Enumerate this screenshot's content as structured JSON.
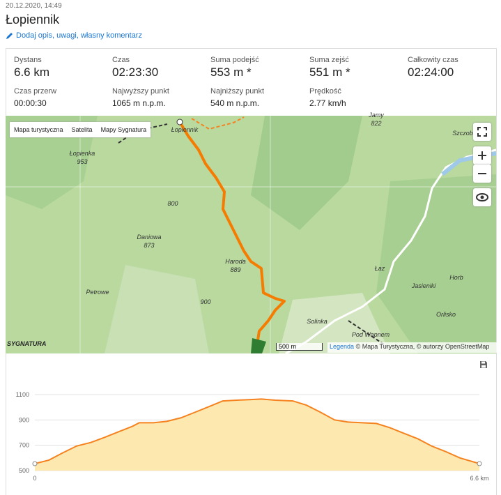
{
  "header": {
    "date": "20.12.2020, 14:49",
    "title": "Łopiennik",
    "link": "Dodaj opis, uwagi, własny komentarz"
  },
  "stats": [
    {
      "label": "Dystans",
      "value": "6.6 km"
    },
    {
      "label": "Czas",
      "value": "02:23:30"
    },
    {
      "label": "Suma podejść",
      "value": "553 m *"
    },
    {
      "label": "Suma zejść",
      "value": "551 m *"
    },
    {
      "label": "Całkowity czas",
      "value": "02:24:00"
    },
    {
      "label": "Czas przerw",
      "value": "00:00:30"
    },
    {
      "label": "Najwyższy punkt",
      "value": "1065 m n.p.m."
    },
    {
      "label": "Najniższy punkt",
      "value": "540 m n.p.m."
    },
    {
      "label": "Prędkość",
      "value": "2.77 km/h"
    }
  ],
  "map": {
    "buttons": [
      "Mapa turystyczna",
      "Satelita",
      "Mapy Sygnatura"
    ],
    "places": [
      "Łopiennik",
      "Łopienka",
      "953",
      "Daniowa",
      "873",
      "Haroda",
      "889",
      "Petrowe",
      "Łaz",
      "Jasieniki",
      "Horb",
      "Orlisko",
      "Pod Wapnem",
      "Jamy",
      "822",
      "Szczob",
      "Solinka",
      "800",
      "900"
    ],
    "logo": "SYGNATURA",
    "scale": "500 m",
    "legend": "Legenda",
    "attribution": "© Mapa Turystyczna, © autorzy OpenStreetMap"
  },
  "chart_data": {
    "type": "line",
    "color": "#f5821f",
    "fill": "#fde9b0",
    "grid": true,
    "x": [
      0,
      0.21,
      0.41,
      0.62,
      0.83,
      1.03,
      1.24,
      1.45,
      1.55,
      1.76,
      1.96,
      2.17,
      2.38,
      2.59,
      2.79,
      3.0,
      3.21,
      3.36,
      3.57,
      3.83,
      4.03,
      4.24,
      4.45,
      4.65,
      4.86,
      5.07,
      5.27,
      5.48,
      5.69,
      5.89,
      6.1,
      6.31,
      6.6
    ],
    "values": [
      555,
      583,
      639,
      694,
      722,
      761,
      806,
      850,
      878,
      878,
      889,
      917,
      961,
      1006,
      1050,
      1056,
      1061,
      1065,
      1056,
      1050,
      1017,
      961,
      900,
      883,
      878,
      872,
      839,
      794,
      750,
      694,
      650,
      600,
      555
    ],
    "xlim": [
      0,
      6.6
    ],
    "xticks": [
      0,
      {
        "value": 6.6,
        "label": "6.6 km"
      }
    ],
    "ylim": [
      500,
      1100
    ],
    "yticks": [
      500,
      700,
      900,
      1100
    ]
  }
}
